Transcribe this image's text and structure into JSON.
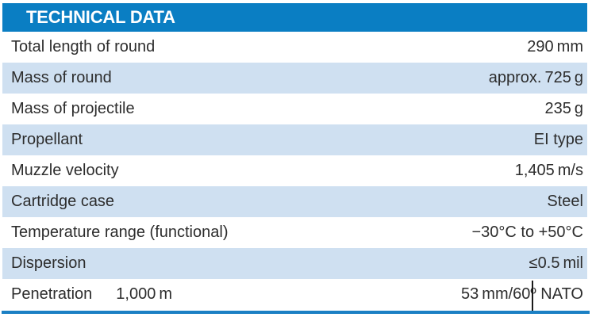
{
  "table": {
    "title": "TECHNICAL DATA",
    "rows": [
      {
        "label": "Total length of round",
        "value": "290 mm"
      },
      {
        "label": "Mass of round",
        "value": "approx. 725 g"
      },
      {
        "label": "Mass of projectile",
        "value": "235 g"
      },
      {
        "label": "Propellant",
        "value": "EI type"
      },
      {
        "label": "Muzzle velocity",
        "value": "1,405 m/s"
      },
      {
        "label": "Cartridge case",
        "value": "Steel"
      },
      {
        "label": "Temperature range (functional)",
        "value": "−30°C to +50°C"
      },
      {
        "label": "Dispersion",
        "value": "≤0.5 mil"
      },
      {
        "label": "Penetration",
        "sub_label": "1,000 m",
        "value": "53 mm/60º NATO"
      }
    ]
  },
  "colors": {
    "header_bg": "#0a7ec3",
    "header_text": "#ffffff",
    "row_alt_bg": "#cfe0f1",
    "body_text": "#2d2d2d",
    "bottom_rule": "#1b80c4"
  }
}
